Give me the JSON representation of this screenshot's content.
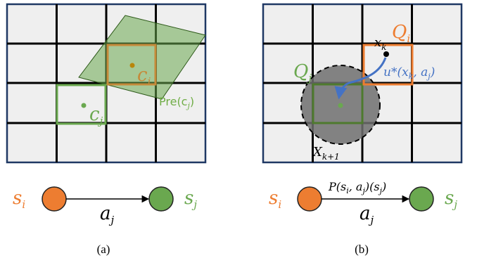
{
  "colors": {
    "orange": "#ED7D31",
    "green": "#70AD47",
    "dark_green": "#4E8A2E",
    "blue": "#4472C4",
    "grid_fill": "#EFEFEF",
    "grid_border": "#1F3864",
    "grid_line": "#000000",
    "node_green": "#6AA84F",
    "node_orange": "#ED7D31",
    "dark_gray": "#6E6E6E",
    "caption": "#000000"
  },
  "panel_a": {
    "caption": "(a)",
    "labels": {
      "c_i": "c",
      "c_i_sub": "i",
      "c_j": "c",
      "c_j_sub": "j",
      "pre": "Pre(c",
      "pre_sub": "j",
      "pre_close": ")"
    },
    "graph": {
      "s_i": "s",
      "s_i_sub": "i",
      "s_j": "s",
      "s_j_sub": "j",
      "a_j": "a",
      "a_j_sub": "j"
    }
  },
  "panel_b": {
    "caption": "(b)",
    "labels": {
      "Q_i": "Q",
      "Q_i_sub": "i",
      "Q_j": "Q",
      "Q_j_sub": "j",
      "x_k": "x",
      "x_k_sub": "k",
      "u": "u*(x",
      "u_sub": "k",
      "u_rest": ", a",
      "u_rest_sub": "j",
      "u_close": ")",
      "X": "X",
      "X_sub": "k+1"
    },
    "graph": {
      "s_i": "s",
      "s_i_sub": "i",
      "s_j": "s",
      "s_j_sub": "j",
      "a_j": "a",
      "a_j_sub": "j",
      "prob": "P(s",
      "prob_sub1": "i",
      "prob_mid": ", a",
      "prob_sub2": "j",
      "prob_mid2": ")(s",
      "prob_sub3": "j",
      "prob_close": ")"
    }
  }
}
